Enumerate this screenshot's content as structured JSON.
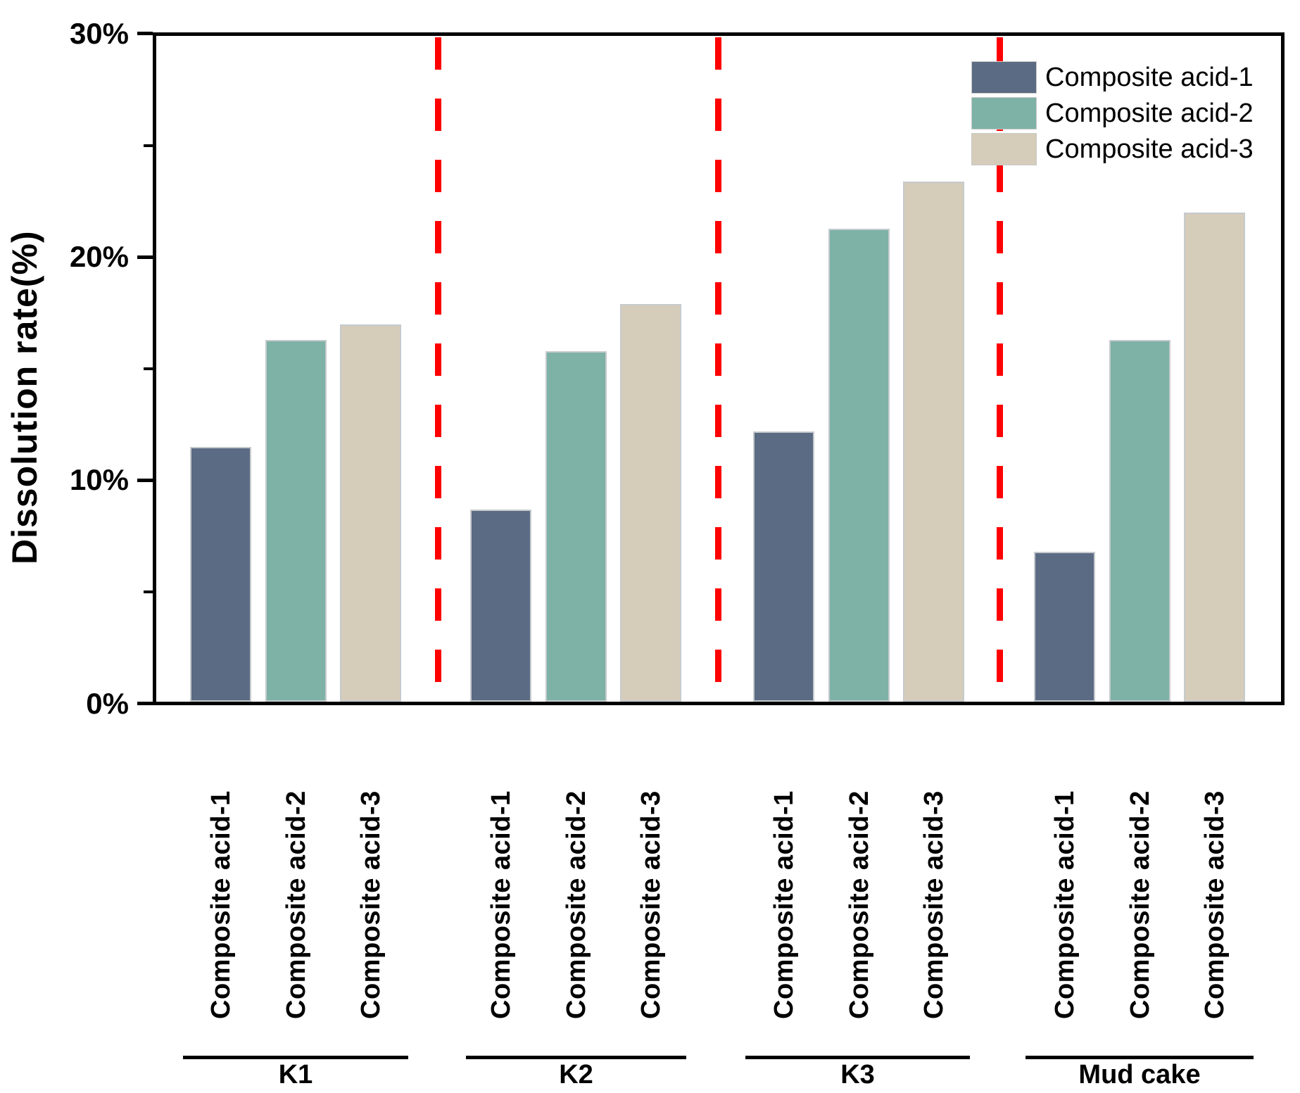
{
  "chart_data": {
    "type": "bar",
    "title": "",
    "ylabel": "Dissolution rate(%)",
    "xlabel": "",
    "ylim": [
      0,
      30
    ],
    "ytick_values": [
      0,
      10,
      20,
      30
    ],
    "ytick_labels": [
      "0%",
      "10%",
      "20%",
      "30%"
    ],
    "minor_tick_values": [
      5,
      15,
      25
    ],
    "grid": false,
    "groups": [
      "K1",
      "K2",
      "K3",
      "Mud cake"
    ],
    "bar_labels": [
      "Composite acid-1",
      "Composite acid-2",
      "Composite acid-3"
    ],
    "series": [
      {
        "name": "Composite acid-1",
        "color": "#5c6b84",
        "values": [
          11.4,
          8.6,
          12.1,
          6.7
        ]
      },
      {
        "name": "Composite acid-2",
        "color": "#7eb2a6",
        "values": [
          16.2,
          15.7,
          21.2,
          16.2
        ]
      },
      {
        "name": "Composite acid-3",
        "color": "#d5ccba",
        "values": [
          16.9,
          17.8,
          23.3,
          21.9
        ]
      }
    ],
    "separators": {
      "count": 3,
      "color": "#fe0000",
      "style": "dashed"
    },
    "legend": {
      "position": "top-right",
      "entries": [
        "Composite acid-1",
        "Composite acid-2",
        "Composite acid-3"
      ]
    },
    "axis_color": "#000000",
    "background_color": "#ffffff"
  }
}
